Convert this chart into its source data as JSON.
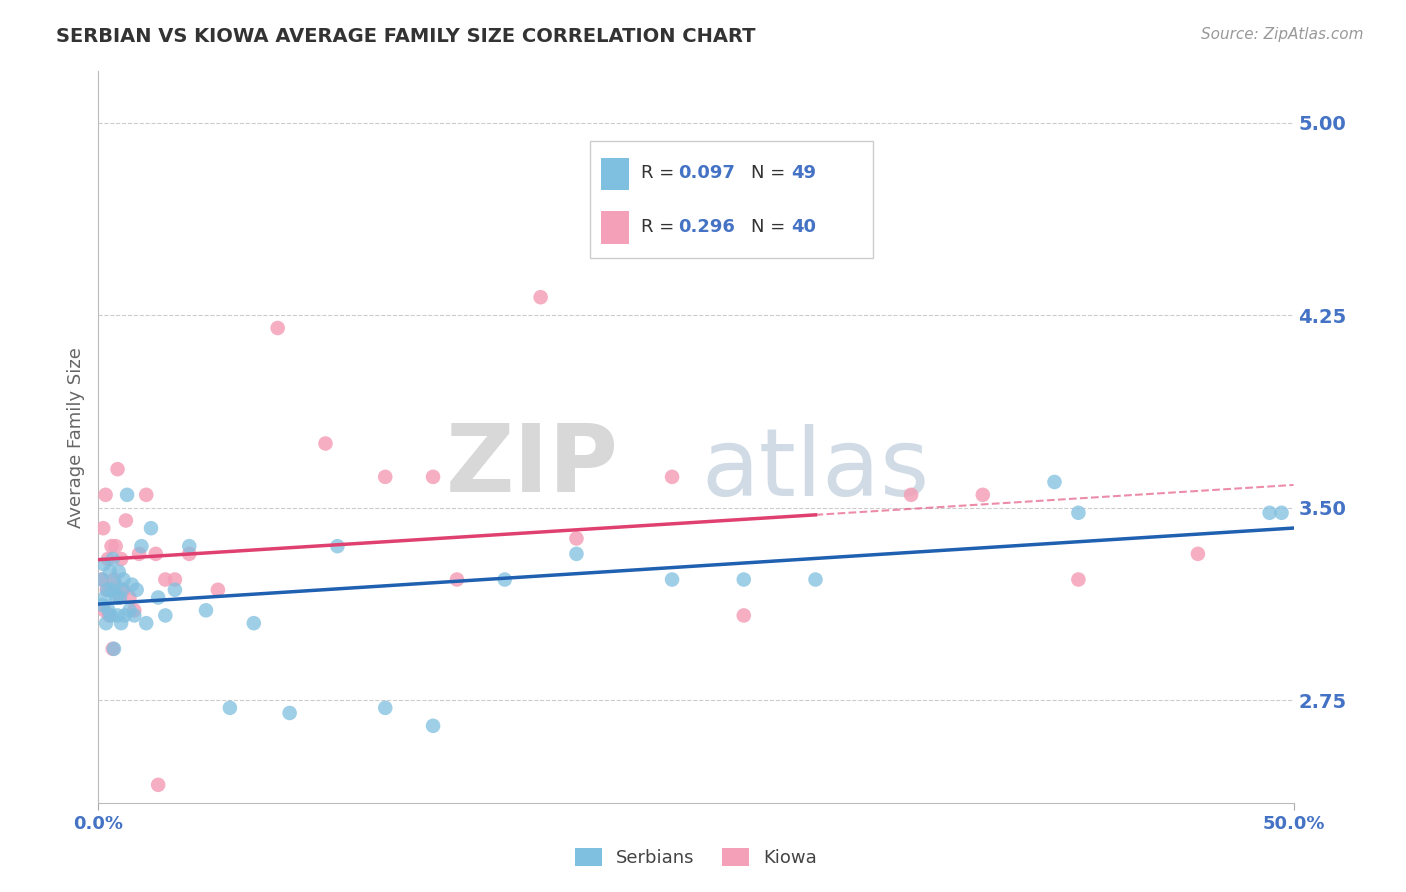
{
  "title": "SERBIAN VS KIOWA AVERAGE FAMILY SIZE CORRELATION CHART",
  "source": "Source: ZipAtlas.com",
  "ylabel": "Average Family Size",
  "yticks": [
    2.75,
    3.5,
    4.25,
    5.0
  ],
  "xlim": [
    0.0,
    50.0
  ],
  "ylim": [
    2.35,
    5.2
  ],
  "serbian_color": "#7fbfdf",
  "kiowa_color": "#f4a0b8",
  "serbian_line_color": "#2060b0",
  "kiowa_line_color": "#e04070",
  "background_color": "#ffffff",
  "grid_color": "#cccccc",
  "title_color": "#333333",
  "tick_label_color": "#4472c4",
  "serbian_scatter_x": [
    0.15,
    0.18,
    0.22,
    0.28,
    0.32,
    0.38,
    0.42,
    0.48,
    0.52,
    0.56,
    0.6,
    0.65,
    0.7,
    0.75,
    0.8,
    0.85,
    0.9,
    0.95,
    1.0,
    1.05,
    1.1,
    1.2,
    1.3,
    1.4,
    1.5,
    1.6,
    1.8,
    2.0,
    2.2,
    2.5,
    2.8,
    3.2,
    3.8,
    4.5,
    5.5,
    6.5,
    8.0,
    10.0,
    12.0,
    14.0,
    17.0,
    20.0,
    24.0,
    27.0,
    30.0,
    40.0,
    41.0,
    49.0,
    49.5
  ],
  "serbian_scatter_y": [
    3.22,
    3.12,
    3.28,
    3.15,
    3.05,
    3.18,
    3.1,
    3.25,
    3.08,
    3.18,
    3.3,
    2.95,
    3.2,
    3.15,
    3.08,
    3.25,
    3.15,
    3.05,
    3.18,
    3.22,
    3.08,
    3.55,
    3.1,
    3.2,
    3.08,
    3.18,
    3.35,
    3.05,
    3.42,
    3.15,
    3.08,
    3.18,
    3.35,
    3.1,
    2.72,
    3.05,
    2.7,
    3.35,
    2.72,
    2.65,
    3.22,
    3.32,
    3.22,
    3.22,
    3.22,
    3.6,
    3.48,
    3.48,
    3.48
  ],
  "kiowa_scatter_x": [
    0.15,
    0.2,
    0.25,
    0.3,
    0.35,
    0.4,
    0.45,
    0.5,
    0.55,
    0.6,
    0.65,
    0.72,
    0.8,
    0.88,
    0.95,
    1.05,
    1.15,
    1.3,
    1.5,
    1.7,
    2.0,
    2.4,
    2.8,
    3.2,
    3.8,
    5.0,
    7.5,
    9.5,
    12.0,
    15.0,
    18.5,
    20.0,
    24.0,
    27.0,
    34.0,
    37.0,
    41.0,
    46.0,
    14.0,
    2.5
  ],
  "kiowa_scatter_y": [
    3.22,
    3.42,
    3.1,
    3.55,
    3.18,
    3.3,
    3.08,
    3.18,
    3.35,
    2.95,
    3.22,
    3.35,
    3.65,
    3.15,
    3.3,
    3.18,
    3.45,
    3.15,
    3.1,
    3.32,
    3.55,
    3.32,
    3.22,
    3.22,
    3.32,
    3.18,
    4.2,
    3.75,
    3.62,
    3.22,
    4.32,
    3.38,
    3.62,
    3.08,
    3.55,
    3.55,
    3.22,
    3.32,
    3.62,
    2.42
  ],
  "watermark_zip_color": "#d8d8d8",
  "watermark_atlas_color": "#b8c8d8"
}
